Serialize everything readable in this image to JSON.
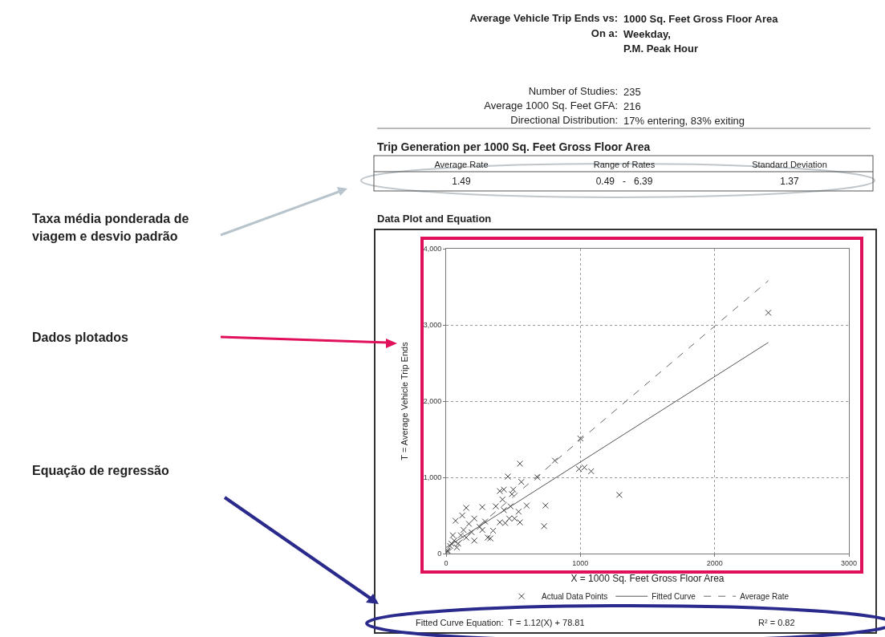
{
  "chart_data": {
    "type": "scatter",
    "title": "Data Plot and Equation",
    "xlabel": "X = 1000 Sq. Feet Gross Floor Area",
    "ylabel": "T = Average Vehicle Trip Ends",
    "annotations": [
      "Average Vehicle Trip Ends vs: 1000 Sq. Feet Gross Floor Area",
      "On a: Weekday,\nP.M. Peak Hour",
      "Number of Studies: 235",
      "Average 1000 Sq. Feet GFA: 216",
      "Directional Distribution: 17% entering, 83% exiting",
      "Trip Generation per 1000 Sq. Feet Gross Floor Area",
      "Average Rate",
      "Range of Rates",
      "Standard Deviation",
      "1.49",
      "0.49   -   6.39",
      "1.37",
      "Taxa média ponderada de\nviagem e desvio padrão",
      "Dados plotados",
      "Equação de regressão",
      "Fitted Curve Equation:  T = 1.12(X) + 78.81",
      "R² = 0.82"
    ],
    "xlim": [
      0,
      3000
    ],
    "xticks": [
      0,
      1000,
      2000,
      3000
    ],
    "ylim": [
      0,
      4000
    ],
    "yticks": [
      0,
      {
        "value": 1000,
        "label": "1,000"
      },
      {
        "value": 2000,
        "label": "2,000"
      },
      {
        "value": 3000,
        "label": "3,000"
      },
      {
        "value": 4000,
        "label": "4,000"
      }
    ],
    "grid": true,
    "legend": "bottom",
    "series": [
      {
        "name": "Actual Data Points",
        "marker": "cross",
        "color": "#444444",
        "x": [
          2400,
          1000,
          550,
          810,
          990,
          1030,
          1080,
          1290,
          460,
          680,
          560,
          400,
          430,
          500,
          490,
          420,
          600,
          740,
          730,
          550,
          150,
          270,
          370,
          480,
          430,
          540,
          470,
          510,
          400,
          440,
          350,
          310,
          330,
          70,
          120,
          210,
          290,
          250,
          190,
          110,
          60,
          30,
          10,
          90,
          150,
          210,
          270,
          170,
          130,
          50,
          40,
          80,
          10
        ],
        "values": [
          3160,
          1510,
          1180,
          1220,
          1110,
          1130,
          1080,
          770,
          1010,
          1000,
          940,
          820,
          840,
          840,
          780,
          710,
          630,
          630,
          360,
          410,
          600,
          610,
          620,
          620,
          570,
          550,
          460,
          460,
          410,
          400,
          300,
          210,
          200,
          430,
          500,
          460,
          420,
          350,
          280,
          240,
          170,
          100,
          40,
          130,
          210,
          170,
          310,
          390,
          310,
          240,
          130,
          80,
          30
        ]
      },
      {
        "name": "Fitted Curve",
        "type": "line",
        "color": "#555555",
        "line_style": "solid",
        "x": [
          0,
          2400
        ],
        "values": [
          80,
          2770
        ]
      },
      {
        "name": "Average Rate",
        "type": "line",
        "color": "#666666",
        "line_style": "dashed",
        "x": [
          0,
          2400
        ],
        "values": [
          0,
          3580
        ]
      }
    ]
  }
}
